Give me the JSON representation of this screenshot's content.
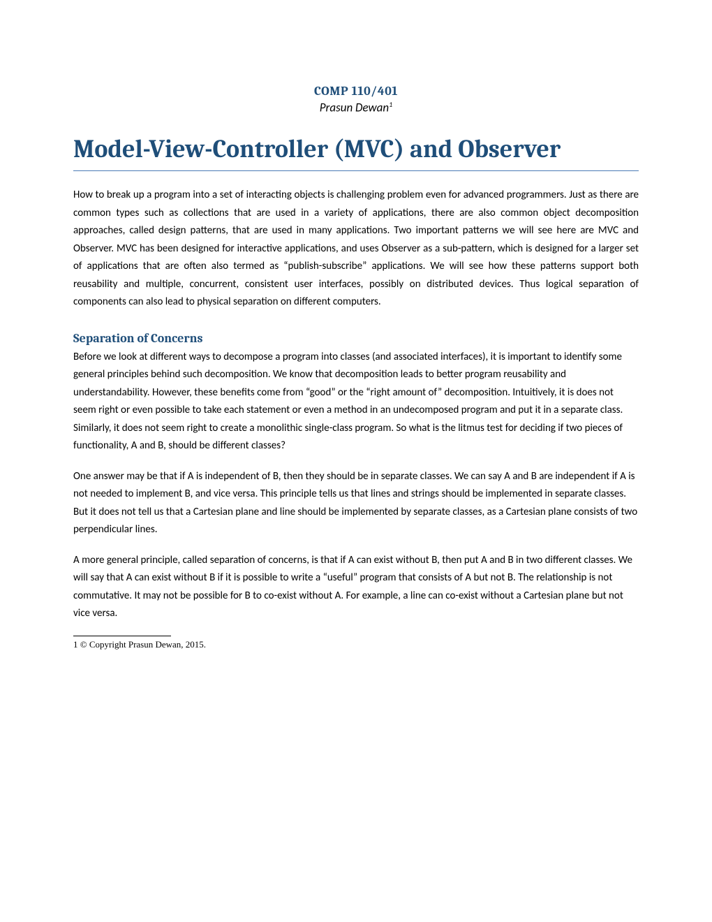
{
  "header": {
    "course_code": "COMP 110/401",
    "author": "Prasun Dewan",
    "author_footnote_mark": "1"
  },
  "title": "Model-View-Controller (MVC) and Observer",
  "colors": {
    "heading_color": "#1f4e79",
    "rule_color": "#4a7ab5",
    "text_color": "#000000",
    "background": "#ffffff"
  },
  "typography": {
    "heading_font": "Cambria",
    "body_font": "Calibri",
    "title_size_pt": 27,
    "section_heading_size_pt": 14,
    "body_size_pt": 11
  },
  "paragraphs": {
    "intro": "How to break up a program into a set of interacting objects is challenging problem even for advanced programmers. Just as there are common types such as collections that are used in a variety of applications, there are also common object decomposition approaches, called design patterns,  that are used in many applications. Two important patterns we will see here are MVC and Observer. MVC has been designed for interactive applications, and uses Observer as a sub-pattern, which is designed for a larger set of applications that are often also termed as “publish-subscribe” applications. We will see how these patterns support both reusability and multiple, concurrent, consistent user interfaces, possibly on distributed devices. Thus logical separation of components can also lead to physical separation on different computers."
  },
  "section1": {
    "heading": "Separation of Concerns",
    "p1": "Before we look at different ways to decompose a program into classes (and associated interfaces), it is important to identify some general principles behind such decomposition. We know that decomposition leads to better program reusability and understandability. However, these benefits come from “good” or the “right amount of” decomposition.  Intuitively, it is does not seem right or even possible to take each statement or even a method in an undecomposed program and put it in a separate class. Similarly, it does not seem right to create a monolithic single-class program. So what is the litmus test for deciding if two pieces of functionality, A and B, should be different classes?",
    "p2": "One answer may be that if A is independent of B, then they should be in separate classes. We can say A and B are independent if A is not needed to implement B, and vice versa. This principle tells us that lines and strings should be implemented in separate classes. But it does not tell us that a Cartesian plane and line should be implemented by separate classes, as  a Cartesian plane consists of two perpendicular lines.",
    "p3": "A more general principle, called separation of concerns, is that if A can exist without B, then put A and B in two different classes.  We will say that A can exist without B if it is possible to write a “useful” program that consists of A but not B. The relationship is not commutative. It may not be possible for B to co-exist without A.  For example, a line can co-exist without a Cartesian plane but not vice versa."
  },
  "footnote": {
    "num": "1",
    "text": " © Copyright Prasun Dewan, 2015."
  }
}
